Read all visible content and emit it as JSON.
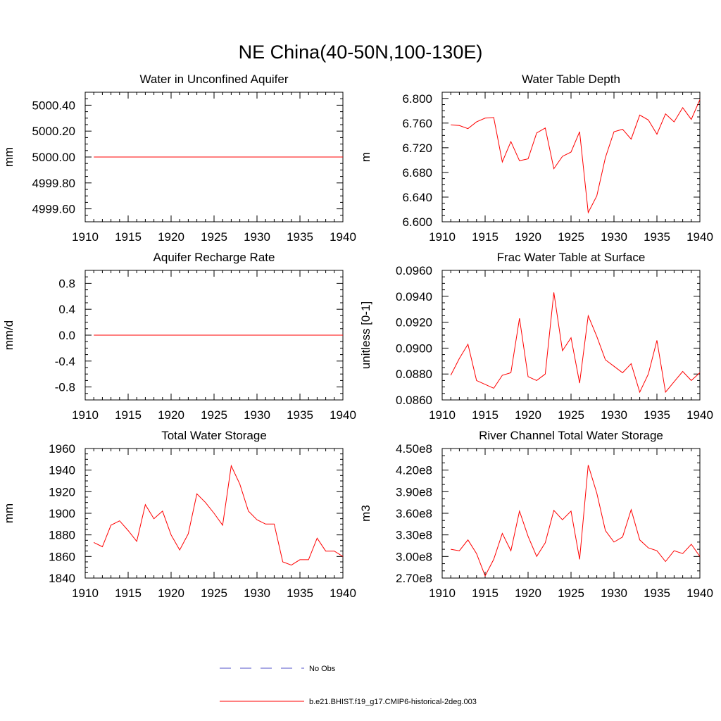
{
  "page_title": "NE China(40-50N,100-130E)",
  "colors": {
    "model": "#ff0000",
    "obs": "#5050c8",
    "axis": "#000000"
  },
  "legend": {
    "obs_label": "No Obs",
    "model_label": "b.e21.BHIST.f19_g17.CMIP6-historical-2deg.003"
  },
  "chart_data": [
    {
      "type": "line",
      "title": "Water in Unconfined Aquifer",
      "ylabel": "mm",
      "xlim": [
        1910,
        1940
      ],
      "ylim": [
        4999.5,
        5000.5
      ],
      "xticks": [
        1910,
        1915,
        1920,
        1925,
        1930,
        1935,
        1940
      ],
      "yticks": [
        4999.6,
        4999.8,
        5000.0,
        5000.2,
        5000.4
      ],
      "ytick_labels": [
        "4999.60",
        "4999.80",
        "5000.00",
        "5000.20",
        "5000.40"
      ],
      "minor_y": 0.05,
      "series": [
        {
          "name": "b.e21.BHIST.f19_g17.CMIP6-historical-2deg.003",
          "x_start": 1911,
          "values": [
            5000,
            5000,
            5000,
            5000,
            5000,
            5000,
            5000,
            5000,
            5000,
            5000,
            5000,
            5000,
            5000,
            5000,
            5000,
            5000,
            5000,
            5000,
            5000,
            5000,
            5000,
            5000,
            5000,
            5000,
            5000,
            5000,
            5000,
            5000,
            5000,
            5000
          ]
        }
      ]
    },
    {
      "type": "line",
      "title": "Water Table Depth",
      "ylabel": "m",
      "xlim": [
        1910,
        1940
      ],
      "ylim": [
        6.6,
        6.81
      ],
      "xticks": [
        1910,
        1915,
        1920,
        1925,
        1930,
        1935,
        1940
      ],
      "yticks": [
        6.6,
        6.64,
        6.68,
        6.72,
        6.76,
        6.8
      ],
      "ytick_labels": [
        "6.600",
        "6.640",
        "6.680",
        "6.720",
        "6.760",
        "6.800"
      ],
      "minor_y": 0.01,
      "series": [
        {
          "name": "b.e21.BHIST.f19_g17.CMIP6-historical-2deg.003",
          "x_start": 1911,
          "values": [
            6.757,
            6.756,
            6.751,
            6.762,
            6.768,
            6.769,
            6.697,
            6.73,
            6.699,
            6.702,
            6.744,
            6.752,
            6.686,
            6.706,
            6.713,
            6.746,
            6.615,
            6.642,
            6.704,
            6.746,
            6.75,
            6.734,
            6.773,
            6.765,
            6.742,
            6.775,
            6.762,
            6.785,
            6.766,
            6.798
          ]
        }
      ]
    },
    {
      "type": "line",
      "title": "Aquifer Recharge Rate",
      "ylabel": "mm/d",
      "xlim": [
        1910,
        1940
      ],
      "ylim": [
        -1.0,
        1.0
      ],
      "xticks": [
        1910,
        1915,
        1920,
        1925,
        1930,
        1935,
        1940
      ],
      "yticks": [
        -0.8,
        -0.4,
        0.0,
        0.4,
        0.8
      ],
      "ytick_labels": [
        "-0.8",
        "-0.4",
        "0.0",
        "0.4",
        "0.8"
      ],
      "minor_y": 0.1,
      "series": [
        {
          "name": "b.e21.BHIST.f19_g17.CMIP6-historical-2deg.003",
          "x_start": 1911,
          "values": [
            0,
            0,
            0,
            0,
            0,
            0,
            0,
            0,
            0,
            0,
            0,
            0,
            0,
            0,
            0,
            0,
            0,
            0,
            0,
            0,
            0,
            0,
            0,
            0,
            0,
            0,
            0,
            0,
            0,
            0
          ]
        }
      ]
    },
    {
      "type": "line",
      "title": "Frac Water Table at Surface",
      "ylabel": "unitless [0-1]",
      "xlim": [
        1910,
        1940
      ],
      "ylim": [
        0.086,
        0.096
      ],
      "xticks": [
        1910,
        1915,
        1920,
        1925,
        1930,
        1935,
        1940
      ],
      "yticks": [
        0.086,
        0.088,
        0.09,
        0.092,
        0.094,
        0.096
      ],
      "ytick_labels": [
        "0.0860",
        "0.0880",
        "0.0900",
        "0.0920",
        "0.0940",
        "0.0960"
      ],
      "minor_y": 0.0005,
      "series": [
        {
          "name": "b.e21.BHIST.f19_g17.CMIP6-historical-2deg.003",
          "x_start": 1911,
          "values": [
            0.0879,
            0.0892,
            0.0903,
            0.0875,
            0.0872,
            0.0869,
            0.0879,
            0.0881,
            0.0923,
            0.0878,
            0.0875,
            0.088,
            0.0943,
            0.0898,
            0.0908,
            0.0873,
            0.0925,
            0.0909,
            0.0891,
            0.0886,
            0.0881,
            0.0888,
            0.0866,
            0.088,
            0.0906,
            0.0866,
            0.0874,
            0.0882,
            0.0875,
            0.0881
          ]
        }
      ]
    },
    {
      "type": "line",
      "title": "Total Water Storage",
      "ylabel": "mm",
      "xlim": [
        1910,
        1940
      ],
      "ylim": [
        1840,
        1960
      ],
      "xticks": [
        1910,
        1915,
        1920,
        1925,
        1930,
        1935,
        1940
      ],
      "yticks": [
        1840,
        1860,
        1880,
        1900,
        1920,
        1940,
        1960
      ],
      "ytick_labels": [
        "1840",
        "1860",
        "1880",
        "1900",
        "1920",
        "1940",
        "1960"
      ],
      "minor_y": 5,
      "series": [
        {
          "name": "b.e21.BHIST.f19_g17.CMIP6-historical-2deg.003",
          "x_start": 1911,
          "values": [
            1873,
            1869,
            1889,
            1893,
            1884,
            1874,
            1908,
            1895,
            1902,
            1880,
            1866,
            1881,
            1918,
            1910,
            1900,
            1889,
            1944,
            1927,
            1902,
            1894,
            1890,
            1890,
            1855,
            1852,
            1857,
            1857,
            1877,
            1865,
            1865,
            1860
          ]
        }
      ]
    },
    {
      "type": "line",
      "title": "River Channel Total Water Storage",
      "ylabel": "m3",
      "xlim": [
        1910,
        1940
      ],
      "ylim": [
        270000000,
        450000000
      ],
      "xticks": [
        1910,
        1915,
        1920,
        1925,
        1930,
        1935,
        1940
      ],
      "yticks": [
        270000000,
        300000000,
        330000000,
        360000000,
        390000000,
        420000000,
        450000000
      ],
      "ytick_labels": [
        "2.70e8",
        "3.00e8",
        "3.30e8",
        "3.60e8",
        "3.90e8",
        "4.20e8",
        "4.50e8"
      ],
      "minor_y": 10000000,
      "series": [
        {
          "name": "b.e21.BHIST.f19_g17.CMIP6-historical-2deg.003",
          "x_start": 1911,
          "values": [
            310000000,
            308000000,
            323000000,
            304000000,
            273000000,
            296000000,
            332000000,
            308000000,
            363000000,
            328000000,
            300000000,
            319000000,
            364000000,
            351000000,
            363000000,
            296000000,
            427000000,
            388000000,
            336000000,
            320000000,
            327000000,
            365000000,
            323000000,
            312000000,
            308000000,
            293000000,
            308000000,
            304000000,
            317000000,
            300000000
          ]
        }
      ]
    }
  ]
}
